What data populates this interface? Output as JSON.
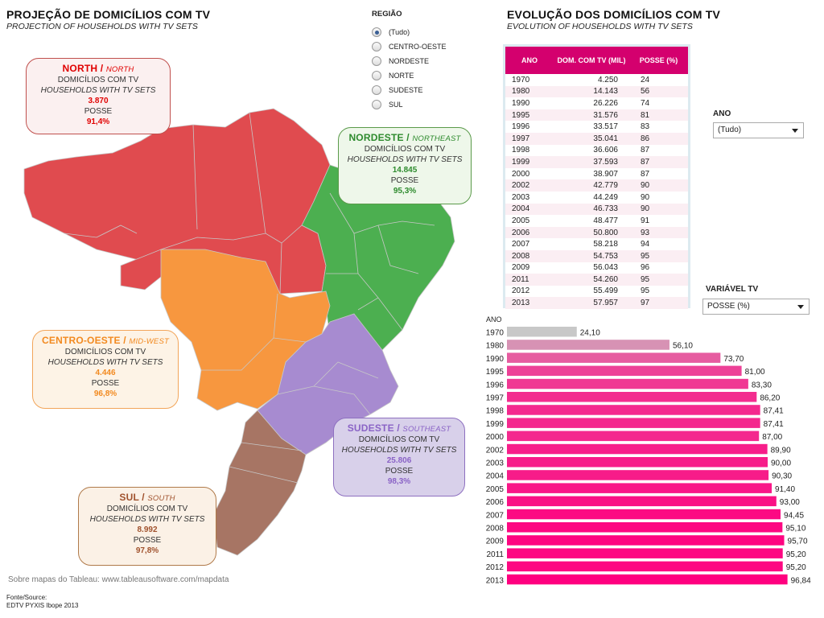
{
  "left_header": {
    "title": "PROJEÇÃO DE DOMICÍLIOS COM TV",
    "subtitle": "PROJECTION OF HOUSEHOLDS WITH TV SETS"
  },
  "region_filter": {
    "label": "REGIÃO",
    "options": [
      "(Tudo)",
      "CENTRO-OESTE",
      "NORDESTE",
      "NORTE",
      "SUDESTE",
      "SUL"
    ],
    "selected": "(Tudo)"
  },
  "regions": [
    {
      "key": "north",
      "name_pt": "NORTH",
      "name_en": "NORTH",
      "line1": "DOMICÍLIOS COM TV",
      "line2": "HOUSEHOLDS WITH TV SETS",
      "households": "3.870",
      "posse_label": "POSSE",
      "posse": "91,4%",
      "color": "#e0464a",
      "bg": "#fbf0f0"
    },
    {
      "key": "nordeste",
      "name_pt": "NORDESTE",
      "name_en": "NORTHEAST",
      "line1": "DOMICÍLIOS COM TV",
      "line2": "HOUSEHOLDS WITH TV SETS",
      "households": "14.845",
      "posse_label": "POSSE",
      "posse": "95,3%",
      "color": "#3a9f3a",
      "bg": "#eef7ea"
    },
    {
      "key": "centro",
      "name_pt": "CENTRO-OESTE",
      "name_en": "MID-WEST",
      "line1": "DOMICÍLIOS COM TV",
      "line2": "HOUSEHOLDS WITH TV SETS",
      "households": "4.446",
      "posse_label": "POSSE",
      "posse": "96,8%",
      "color": "#f2923a",
      "bg": "#fdf3e6"
    },
    {
      "key": "sudeste",
      "name_pt": "SUDESTE",
      "name_en": "SOUTHEAST",
      "line1": "DOMICÍLIOS COM TV",
      "line2": "HOUSEHOLDS WITH TV SETS",
      "households": "25.806",
      "posse_label": "POSSE",
      "posse": "98,3%",
      "color": "#9a78c6",
      "bg": "#d8d0ea"
    },
    {
      "key": "sul",
      "name_pt": "SUL",
      "name_en": "SOUTH",
      "line1": "DOMICÍLIOS COM TV",
      "line2": "HOUSEHOLDS WITH TV SETS",
      "households": "8.992",
      "posse_label": "POSSE",
      "posse": "97,8%",
      "color": "#a0522d",
      "bg": "#fbf1e6"
    }
  ],
  "map_colors": {
    "norte": "#e04b4f",
    "nordeste": "#4caf50",
    "centro": "#f7973f",
    "sudeste": "#a78bd0",
    "sul": "#a77564"
  },
  "map_source": "Sobre mapas do Tableau: www.tableausoftware.com/mapdata",
  "source": {
    "label": "Fonte/Source:",
    "value": "EDTV  PYXIS Ibope 2013"
  },
  "right_header": {
    "title": "EVOLUÇÃO DOS DOMICÍLIOS COM TV",
    "subtitle": "EVOLUTION OF HOUSEHOLDS WITH TV SETS"
  },
  "table": {
    "headers": [
      "ANO",
      "DOM. COM TV (MIL)",
      "POSSE (%)"
    ],
    "rows": [
      [
        "1970",
        "4.250",
        "24"
      ],
      [
        "1980",
        "14.143",
        "56"
      ],
      [
        "1990",
        "26.226",
        "74"
      ],
      [
        "1995",
        "31.576",
        "81"
      ],
      [
        "1996",
        "33.517",
        "83"
      ],
      [
        "1997",
        "35.041",
        "86"
      ],
      [
        "1998",
        "36.606",
        "87"
      ],
      [
        "1999",
        "37.593",
        "87"
      ],
      [
        "2000",
        "38.907",
        "87"
      ],
      [
        "2002",
        "42.779",
        "90"
      ],
      [
        "2003",
        "44.249",
        "90"
      ],
      [
        "2004",
        "46.733",
        "90"
      ],
      [
        "2005",
        "48.477",
        "91"
      ],
      [
        "2006",
        "50.800",
        "93"
      ],
      [
        "2007",
        "58.218",
        "94"
      ],
      [
        "2008",
        "54.753",
        "95"
      ],
      [
        "2009",
        "56.043",
        "96"
      ],
      [
        "2011",
        "54.260",
        "95"
      ],
      [
        "2012",
        "55.499",
        "95"
      ],
      [
        "2013",
        "57.957",
        "97"
      ]
    ]
  },
  "ano_filter": {
    "label": "ANO",
    "value": "(Tudo)"
  },
  "variavel_filter": {
    "label": "VARIÁVEL TV",
    "value": "POSSE (%)"
  },
  "chart_data": {
    "type": "bar",
    "orientation": "horizontal",
    "xlabel": "",
    "ylabel": "ANO",
    "categories": [
      "1970",
      "1980",
      "1990",
      "1995",
      "1996",
      "1997",
      "1998",
      "1999",
      "2000",
      "2002",
      "2003",
      "2004",
      "2005",
      "2006",
      "2007",
      "2008",
      "2009",
      "2011",
      "2012",
      "2013"
    ],
    "values": [
      24.1,
      56.1,
      73.7,
      81.0,
      83.3,
      86.2,
      87.41,
      87.41,
      87.0,
      89.9,
      90.0,
      90.3,
      91.4,
      93.0,
      94.45,
      95.1,
      95.7,
      95.2,
      95.2,
      96.84
    ],
    "labels": [
      "24,10",
      "56,10",
      "73,70",
      "81,00",
      "83,30",
      "86,20",
      "87,41",
      "87,41",
      "87,00",
      "89,90",
      "90,00",
      "90,30",
      "91,40",
      "93,00",
      "94,45",
      "95,10",
      "95,70",
      "95,20",
      "95,20",
      "96,84"
    ],
    "xlim": [
      0,
      100
    ],
    "color_range": [
      "#c8c8c8",
      "#ff007f"
    ],
    "grid": false
  }
}
